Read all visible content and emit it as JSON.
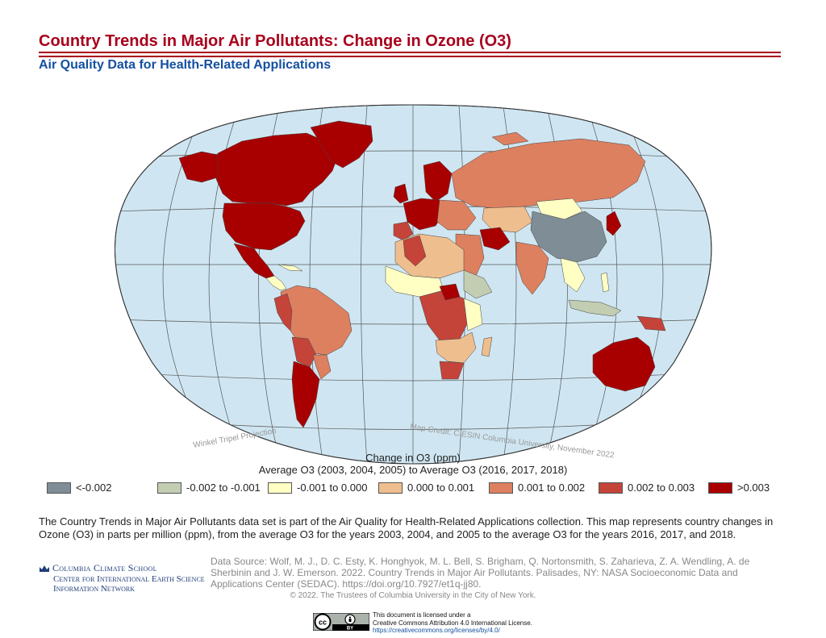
{
  "header": {
    "title": "Country Trends in Major Air Pollutants: Change in Ozone (O3)",
    "subtitle": "Air Quality Data for Health-Related Applications"
  },
  "map": {
    "projection_label": "Winkel Tripel Projection",
    "credit": "Map Credit: CIESIN Columbia University, November 2022",
    "ocean_color": "#cfe6f2",
    "graticule_color": "#555555"
  },
  "legend": {
    "title_line1": "Change in O3 (ppm)",
    "title_line2": "Average O3 (2003, 2004, 2005) to Average O3 (2016, 2017, 2018)",
    "classes": [
      {
        "label": "<-0.002",
        "color": "#7f8d96"
      },
      {
        "label": "-0.002 to -0.001",
        "color": "#c3cdb2"
      },
      {
        "label": "-0.001 to 0.000",
        "color": "#ffffc4"
      },
      {
        "label": "0.000 to 0.001",
        "color": "#efbe8e"
      },
      {
        "label": "0.001 to 0.002",
        "color": "#dd8060"
      },
      {
        "label": "0.002 to 0.003",
        "color": "#c4443a"
      },
      {
        "label": ">0.003",
        "color": "#a80000"
      }
    ]
  },
  "description": "The Country Trends in Major Air Pollutants data set is part of the Air Quality for Health-Related Applications collection. This map represents country changes in Ozone (O3) in parts per million (ppm), from the average O3 for the years 2003, 2004, and 2005 to the average O3 for the years 2016, 2017, and 2018.",
  "logo": {
    "line1": "Columbia Climate School",
    "line2": "Center for International Earth Science",
    "line3": "Information Network"
  },
  "source": "Data Source: Wolf, M. J., D. C. Esty, K. Honghyok, M. L. Bell, S. Brigham, Q. Nortonsmith, S. Zaharieva, Z. A. Wendling, A. de Sherbinin and J. W. Emerson. 2022. Country Trends in Major Air Pollutants. Palisades, NY: NASA Socioeconomic Data and Applications Center (SEDAC). https://doi.org/10.7927/et1q-jj80.",
  "copyright": "© 2022. The Trustees of Columbia University in the City of New York.",
  "license": {
    "line1": "This document is licensed under a",
    "line2": "Creative Commons Attribution 4.0 International License.",
    "link": "https://creativecommons.org/licenses/by/4.0/",
    "badge_text": "BY"
  }
}
